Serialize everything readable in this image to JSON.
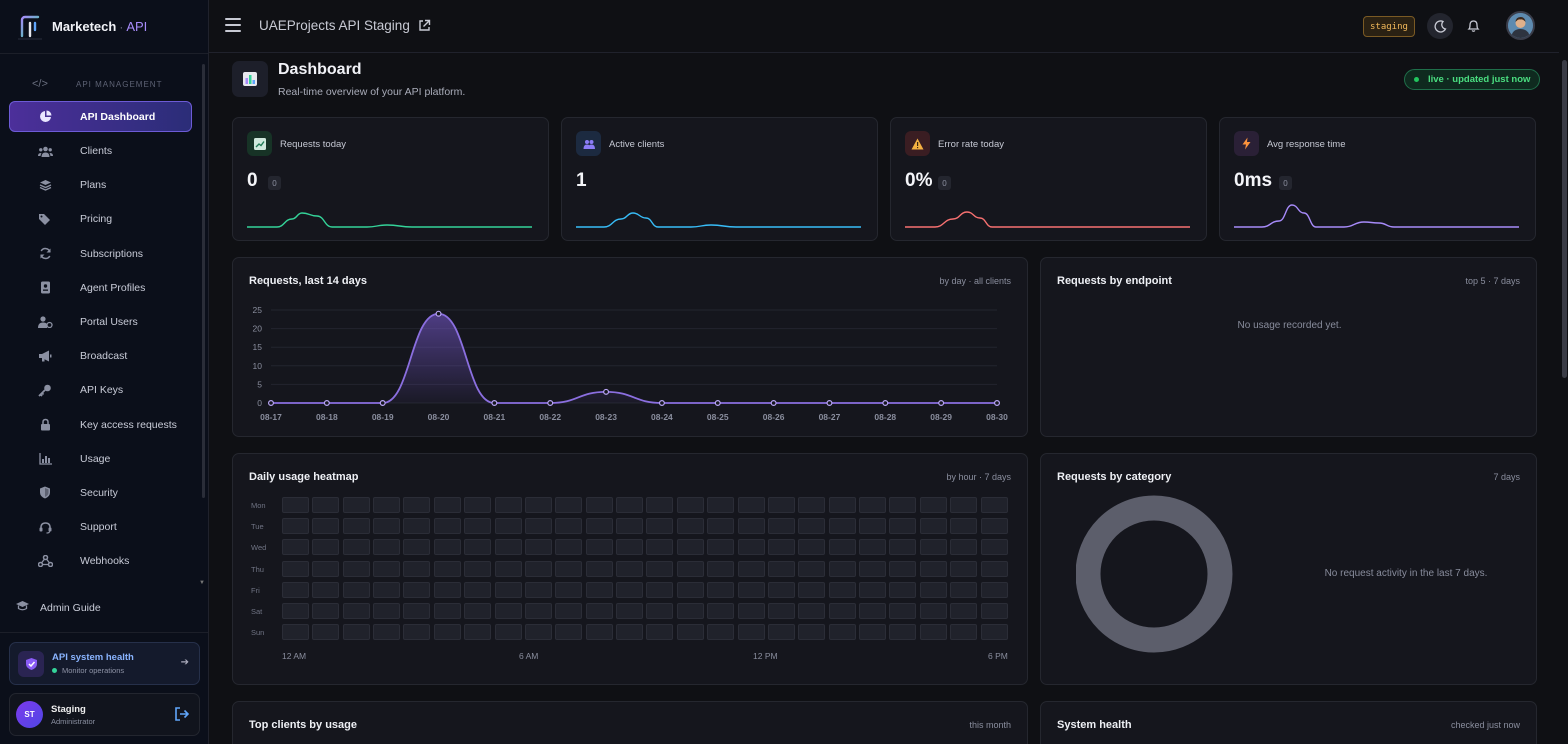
{
  "brand": {
    "name": "Marketech",
    "separator": "·",
    "suffix": "API"
  },
  "sidebar": {
    "section_title": "API MANAGEMENT",
    "items": [
      {
        "label": "API Dashboard",
        "icon": "pie-chart-icon",
        "active": true
      },
      {
        "label": "Clients",
        "icon": "users-icon"
      },
      {
        "label": "Plans",
        "icon": "layers-icon"
      },
      {
        "label": "Pricing",
        "icon": "tags-icon"
      },
      {
        "label": "Subscriptions",
        "icon": "refresh-icon"
      },
      {
        "label": "Agent Profiles",
        "icon": "id-badge-icon"
      },
      {
        "label": "Portal Users",
        "icon": "user-gear-icon"
      },
      {
        "label": "Broadcast",
        "icon": "megaphone-icon"
      },
      {
        "label": "API Keys",
        "icon": "key-icon"
      },
      {
        "label": "Key access requests",
        "icon": "lock-icon"
      },
      {
        "label": "Usage",
        "icon": "bar-chart-icon"
      },
      {
        "label": "Security",
        "icon": "shield-icon"
      },
      {
        "label": "Support",
        "icon": "headset-icon"
      },
      {
        "label": "Webhooks",
        "icon": "webhook-icon"
      }
    ],
    "guide": "Admin Guide",
    "health": {
      "title": "API system health",
      "subtitle": "Monitor operations"
    },
    "user": {
      "initials": "ST",
      "name": "Staging",
      "role": "Administrator"
    }
  },
  "topbar": {
    "project": "UAEProjects API Staging",
    "env_badge": "staging"
  },
  "dashboard": {
    "title": "Dashboard",
    "subtitle": "Real-time overview of your API platform.",
    "live": "live · updated just now"
  },
  "stats": [
    {
      "label": "Requests today",
      "value": "0",
      "delta": "0",
      "color": "#34d399",
      "icon": "trend-chart-icon"
    },
    {
      "label": "Active clients",
      "value": "1",
      "delta": "",
      "color": "#38bdf8",
      "icon": "users-icon"
    },
    {
      "label": "Error rate today",
      "value": "0%",
      "delta": "0",
      "color": "#f87171",
      "icon": "warning-icon"
    },
    {
      "label": "Avg response time",
      "value": "0ms",
      "delta": "0",
      "color": "#a78bfa",
      "icon": "bolt-icon"
    }
  ],
  "requests_card": {
    "title": "Requests, last 14 days",
    "subtitle": "by day · all clients"
  },
  "endpoint_card": {
    "title": "Requests by endpoint",
    "subtitle": "top 5 · 7 days",
    "empty": "No usage recorded yet."
  },
  "heatmap_card": {
    "title": "Daily usage heatmap",
    "subtitle": "by hour · 7 days",
    "days": [
      "Mon",
      "Tue",
      "Wed",
      "Thu",
      "Fri",
      "Sat",
      "Sun"
    ],
    "x_labels": [
      "12 AM",
      "6 AM",
      "12 PM",
      "6 PM"
    ]
  },
  "category_card": {
    "title": "Requests by category",
    "subtitle": "7 days",
    "empty": "No request activity in the last 7 days."
  },
  "clients_card": {
    "title": "Top clients by usage",
    "subtitle": "this month"
  },
  "health_card": {
    "title": "System health",
    "subtitle": "checked just now"
  },
  "chart_data": {
    "type": "area",
    "title": "Requests, last 14 days",
    "x": [
      "08-17",
      "08-18",
      "08-19",
      "08-20",
      "08-21",
      "08-22",
      "08-23",
      "08-24",
      "08-25",
      "08-26",
      "08-27",
      "08-28",
      "08-29",
      "08-30"
    ],
    "series": [
      {
        "values": [
          0,
          0,
          0,
          24,
          0,
          0,
          3,
          0,
          0,
          0,
          0,
          0,
          0,
          0
        ]
      }
    ],
    "yticks": [
      0,
      5,
      10,
      15,
      20,
      25
    ],
    "ylim": [
      0,
      25
    ],
    "grid": true,
    "color": "#8b6fe0"
  }
}
